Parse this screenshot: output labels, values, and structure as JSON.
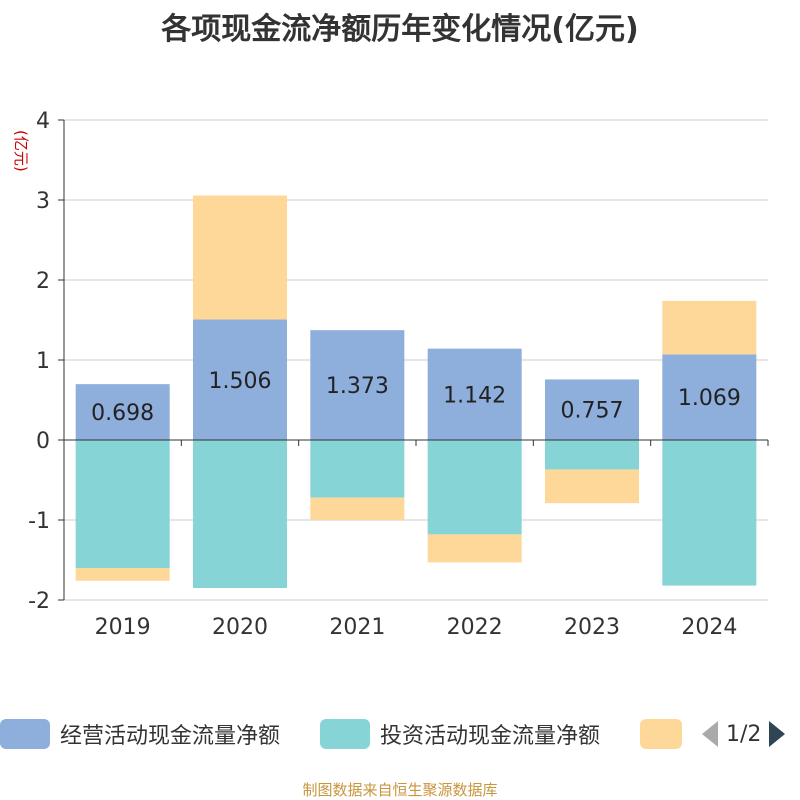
{
  "title": "各项现金流净额历年变化情况(亿元)",
  "unit_label": "(亿元)",
  "source": "制图数据来自恒生聚源数据库",
  "legend": {
    "items": [
      {
        "label": "经营活动现金流量净额",
        "color": "#8eaedb"
      },
      {
        "label": "投资活动现金流量净额",
        "color": "#87d4d6"
      },
      {
        "label": "",
        "color": "#fdd898"
      }
    ],
    "page": "1/2"
  },
  "chart_data": {
    "type": "bar",
    "stacked": true,
    "categories": [
      "2019",
      "2020",
      "2021",
      "2022",
      "2023",
      "2024"
    ],
    "series": [
      {
        "name": "经营活动现金流量净额",
        "color": "#8eaedb",
        "values": [
          0.698,
          1.506,
          1.373,
          1.142,
          0.757,
          1.069
        ],
        "labels": [
          "0.698",
          "1.506",
          "1.373",
          "1.142",
          "0.757",
          "1.069"
        ]
      },
      {
        "name": "投资活动现金流量净额",
        "color": "#87d4d6",
        "values": [
          -1.6,
          -1.85,
          -0.72,
          -1.18,
          -0.37,
          -1.82
        ]
      },
      {
        "name": "",
        "color": "#fdd898",
        "values": [
          -0.16,
          1.55,
          -0.28,
          -0.35,
          -0.42,
          0.67
        ]
      }
    ],
    "yticks": [
      "4",
      "3",
      "2",
      "1",
      "0",
      "-1",
      "-2"
    ],
    "ylim": [
      -2,
      4
    ],
    "grid": true
  }
}
